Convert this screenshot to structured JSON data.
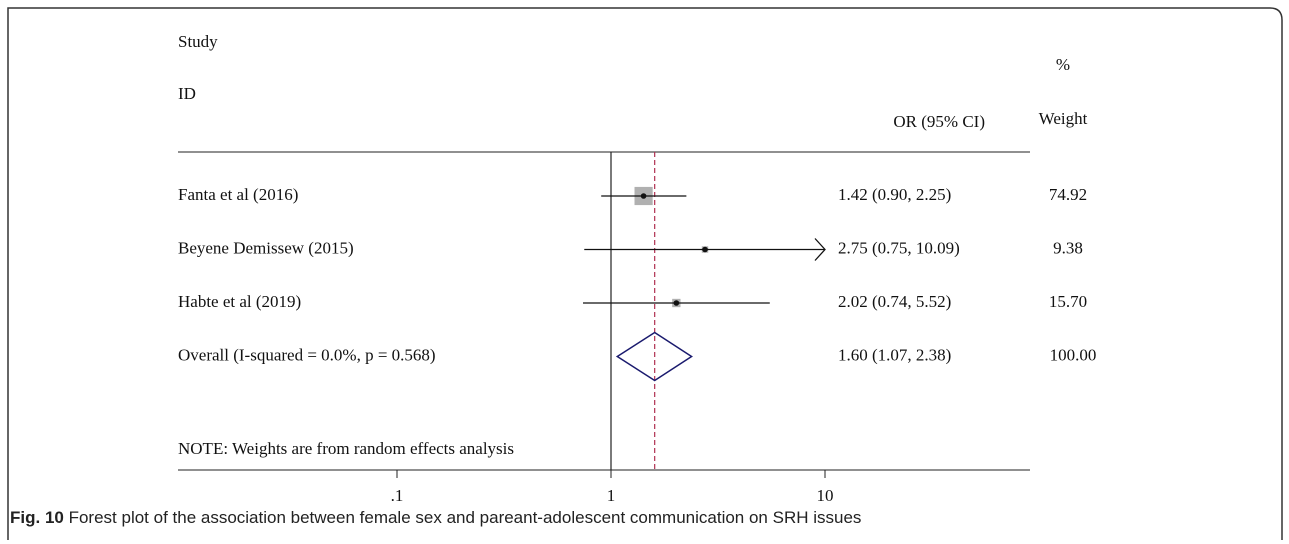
{
  "chart_data": {
    "type": "forest",
    "headers": {
      "study": "Study",
      "id": "ID",
      "effect": "OR (95% CI)",
      "weight_top": "%",
      "weight": "Weight"
    },
    "studies": [
      {
        "label": "Fanta et al (2016)",
        "value": 1.42,
        "lower": 0.9,
        "upper": 2.25,
        "value_label": "1.42 (0.90, 2.25)",
        "weight": 74.92,
        "weight_label": "74.92"
      },
      {
        "label": "Beyene Demissew (2015)",
        "value": 2.75,
        "lower": 0.75,
        "upper": 10.09,
        "value_label": "2.75 (0.75, 10.09)",
        "weight": 9.38,
        "weight_label": "9.38"
      },
      {
        "label": "Habte et al (2019)",
        "value": 2.02,
        "lower": 0.74,
        "upper": 5.52,
        "value_label": "2.02 (0.74, 5.52)",
        "weight": 15.7,
        "weight_label": "15.70"
      }
    ],
    "overall": {
      "label": "Overall  (I-squared = 0.0%, p = 0.568)",
      "value": 1.6,
      "lower": 1.07,
      "upper": 2.38,
      "value_label": "1.60 (1.07, 2.38)",
      "weight": 100.0,
      "weight_label": "100.00"
    },
    "note": "NOTE: Weights are from random effects analysis",
    "log_scale": true,
    "xlim": [
      0.1,
      10
    ],
    "xticks": [
      {
        "value": 0.1,
        "label": ".1"
      },
      1,
      10
    ],
    "box_color": "#b0b0b0",
    "diamond_color": "#1a1a6e",
    "ref_color": "#b03050"
  },
  "caption": {
    "label": "Fig. 10",
    "text": " Forest plot of the association between female sex and pareant-adolescent communication on SRH issues"
  }
}
